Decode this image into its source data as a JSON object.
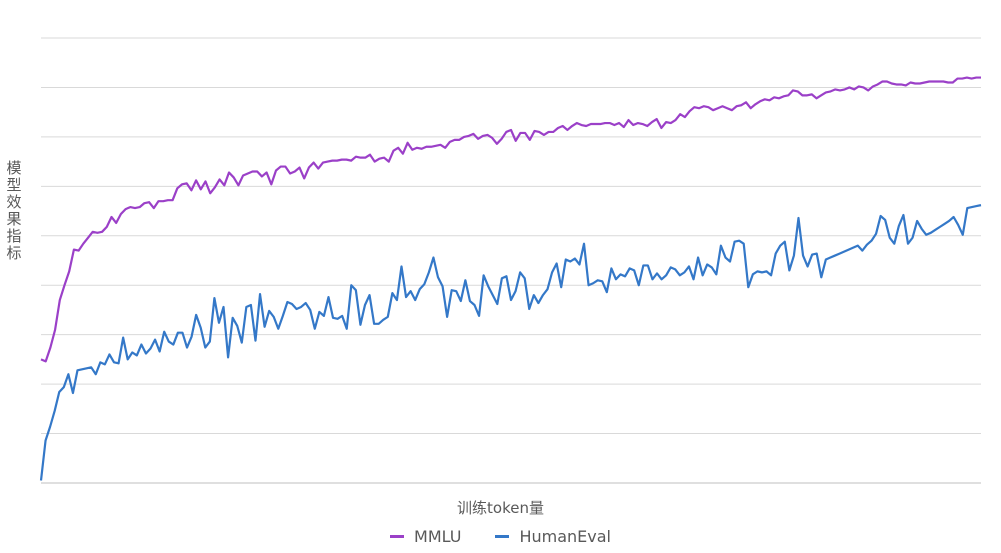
{
  "chart_data": {
    "type": "line",
    "xlabel": "训练token量",
    "ylabel": "模型效果指标",
    "ylim": [
      0,
      9
    ],
    "grid": true,
    "legend_position": "bottom-center",
    "series": [
      {
        "name": "MMLU",
        "color": "#9b40c8",
        "values": [
          2.5,
          2.46,
          2.74,
          3.1,
          3.7,
          4.0,
          4.28,
          4.72,
          4.7,
          4.84,
          4.96,
          5.08,
          5.06,
          5.08,
          5.18,
          5.38,
          5.26,
          5.44,
          5.54,
          5.58,
          5.56,
          5.58,
          5.66,
          5.68,
          5.56,
          5.7,
          5.7,
          5.72,
          5.72,
          5.96,
          6.04,
          6.06,
          5.92,
          6.12,
          5.94,
          6.1,
          5.86,
          5.98,
          6.14,
          6.02,
          6.28,
          6.18,
          6.02,
          6.22,
          6.26,
          6.3,
          6.3,
          6.2,
          6.28,
          6.04,
          6.32,
          6.4,
          6.4,
          6.26,
          6.3,
          6.38,
          6.16,
          6.38,
          6.48,
          6.36,
          6.48,
          6.5,
          6.52,
          6.52,
          6.54,
          6.54,
          6.52,
          6.6,
          6.58,
          6.58,
          6.64,
          6.5,
          6.56,
          6.58,
          6.5,
          6.72,
          6.78,
          6.66,
          6.88,
          6.74,
          6.78,
          6.76,
          6.8,
          6.8,
          6.82,
          6.84,
          6.78,
          6.9,
          6.94,
          6.94,
          7.0,
          7.02,
          7.06,
          6.96,
          7.02,
          7.04,
          6.98,
          6.86,
          6.96,
          7.1,
          7.14,
          6.92,
          7.08,
          7.08,
          6.94,
          7.12,
          7.1,
          7.04,
          7.1,
          7.1,
          7.18,
          7.22,
          7.14,
          7.22,
          7.28,
          7.24,
          7.22,
          7.26,
          7.26,
          7.26,
          7.28,
          7.28,
          7.24,
          7.28,
          7.2,
          7.34,
          7.24,
          7.28,
          7.26,
          7.22,
          7.3,
          7.36,
          7.18,
          7.3,
          7.28,
          7.34,
          7.46,
          7.4,
          7.52,
          7.6,
          7.58,
          7.62,
          7.6,
          7.54,
          7.58,
          7.62,
          7.58,
          7.54,
          7.62,
          7.64,
          7.7,
          7.58,
          7.66,
          7.72,
          7.76,
          7.74,
          7.8,
          7.78,
          7.82,
          7.84,
          7.94,
          7.92,
          7.84,
          7.84,
          7.86,
          7.78,
          7.84,
          7.9,
          7.92,
          7.96,
          7.94,
          7.96,
          8.0,
          7.96,
          8.02,
          8.0,
          7.94,
          8.02,
          8.06,
          8.12,
          8.12,
          8.08,
          8.06,
          8.06,
          8.04,
          8.1,
          8.08,
          8.08,
          8.1,
          8.12,
          8.12,
          8.12,
          8.12,
          8.1,
          8.1,
          8.18,
          8.18,
          8.2,
          8.18,
          8.2,
          8.2
        ]
      },
      {
        "name": "HumanEval",
        "color": "#3478c8",
        "values": [
          0.05,
          0.86,
          1.14,
          1.46,
          1.84,
          1.94,
          2.2,
          1.82,
          2.28,
          2.3,
          2.32,
          2.34,
          2.2,
          2.44,
          2.4,
          2.6,
          2.44,
          2.42,
          2.94,
          2.5,
          2.64,
          2.58,
          2.8,
          2.62,
          2.72,
          2.9,
          2.66,
          3.06,
          2.86,
          2.8,
          3.04,
          3.04,
          2.74,
          2.96,
          3.4,
          3.14,
          2.74,
          2.86,
          3.74,
          3.24,
          3.56,
          2.54,
          3.34,
          3.18,
          2.84,
          3.56,
          3.6,
          2.88,
          3.82,
          3.16,
          3.48,
          3.36,
          3.12,
          3.38,
          3.66,
          3.62,
          3.52,
          3.56,
          3.64,
          3.5,
          3.12,
          3.46,
          3.38,
          3.76,
          3.34,
          3.32,
          3.38,
          3.12,
          4.0,
          3.9,
          3.2,
          3.6,
          3.8,
          3.22,
          3.22,
          3.3,
          3.36,
          3.84,
          3.7,
          4.38,
          3.76,
          3.88,
          3.7,
          3.92,
          4.02,
          4.26,
          4.56,
          4.16,
          3.98,
          3.36,
          3.9,
          3.88,
          3.68,
          4.1,
          3.68,
          3.6,
          3.38,
          4.2,
          3.98,
          3.8,
          3.62,
          4.14,
          4.18,
          3.7,
          3.88,
          4.26,
          4.14,
          3.52,
          3.8,
          3.64,
          3.8,
          3.92,
          4.26,
          4.44,
          3.96,
          4.52,
          4.48,
          4.54,
          4.42,
          4.84,
          4.0,
          4.04,
          4.1,
          4.08,
          3.86,
          4.34,
          4.12,
          4.22,
          4.18,
          4.34,
          4.3,
          4.0,
          4.4,
          4.4,
          4.12,
          4.24,
          4.12,
          4.2,
          4.36,
          4.32,
          4.2,
          4.26,
          4.38,
          4.12,
          4.56,
          4.2,
          4.42,
          4.36,
          4.22,
          4.8,
          4.56,
          4.48,
          4.88,
          4.9,
          4.84,
          3.96,
          4.22,
          4.28,
          4.26,
          4.28,
          4.2,
          4.64,
          4.8,
          4.88,
          4.3,
          4.6,
          5.36,
          4.6,
          4.38,
          4.62,
          4.64,
          4.16,
          4.52,
          4.56,
          4.6,
          4.64,
          4.68,
          4.72,
          4.76,
          4.8,
          4.7,
          4.82,
          4.9,
          5.04,
          5.4,
          5.32,
          4.96,
          4.84,
          5.2,
          5.42,
          4.84,
          4.96,
          5.3,
          5.14,
          5.02,
          5.06,
          5.12,
          5.18,
          5.24,
          5.3,
          5.38,
          5.22,
          5.02,
          5.56,
          5.58,
          5.6,
          5.62
        ]
      }
    ]
  }
}
